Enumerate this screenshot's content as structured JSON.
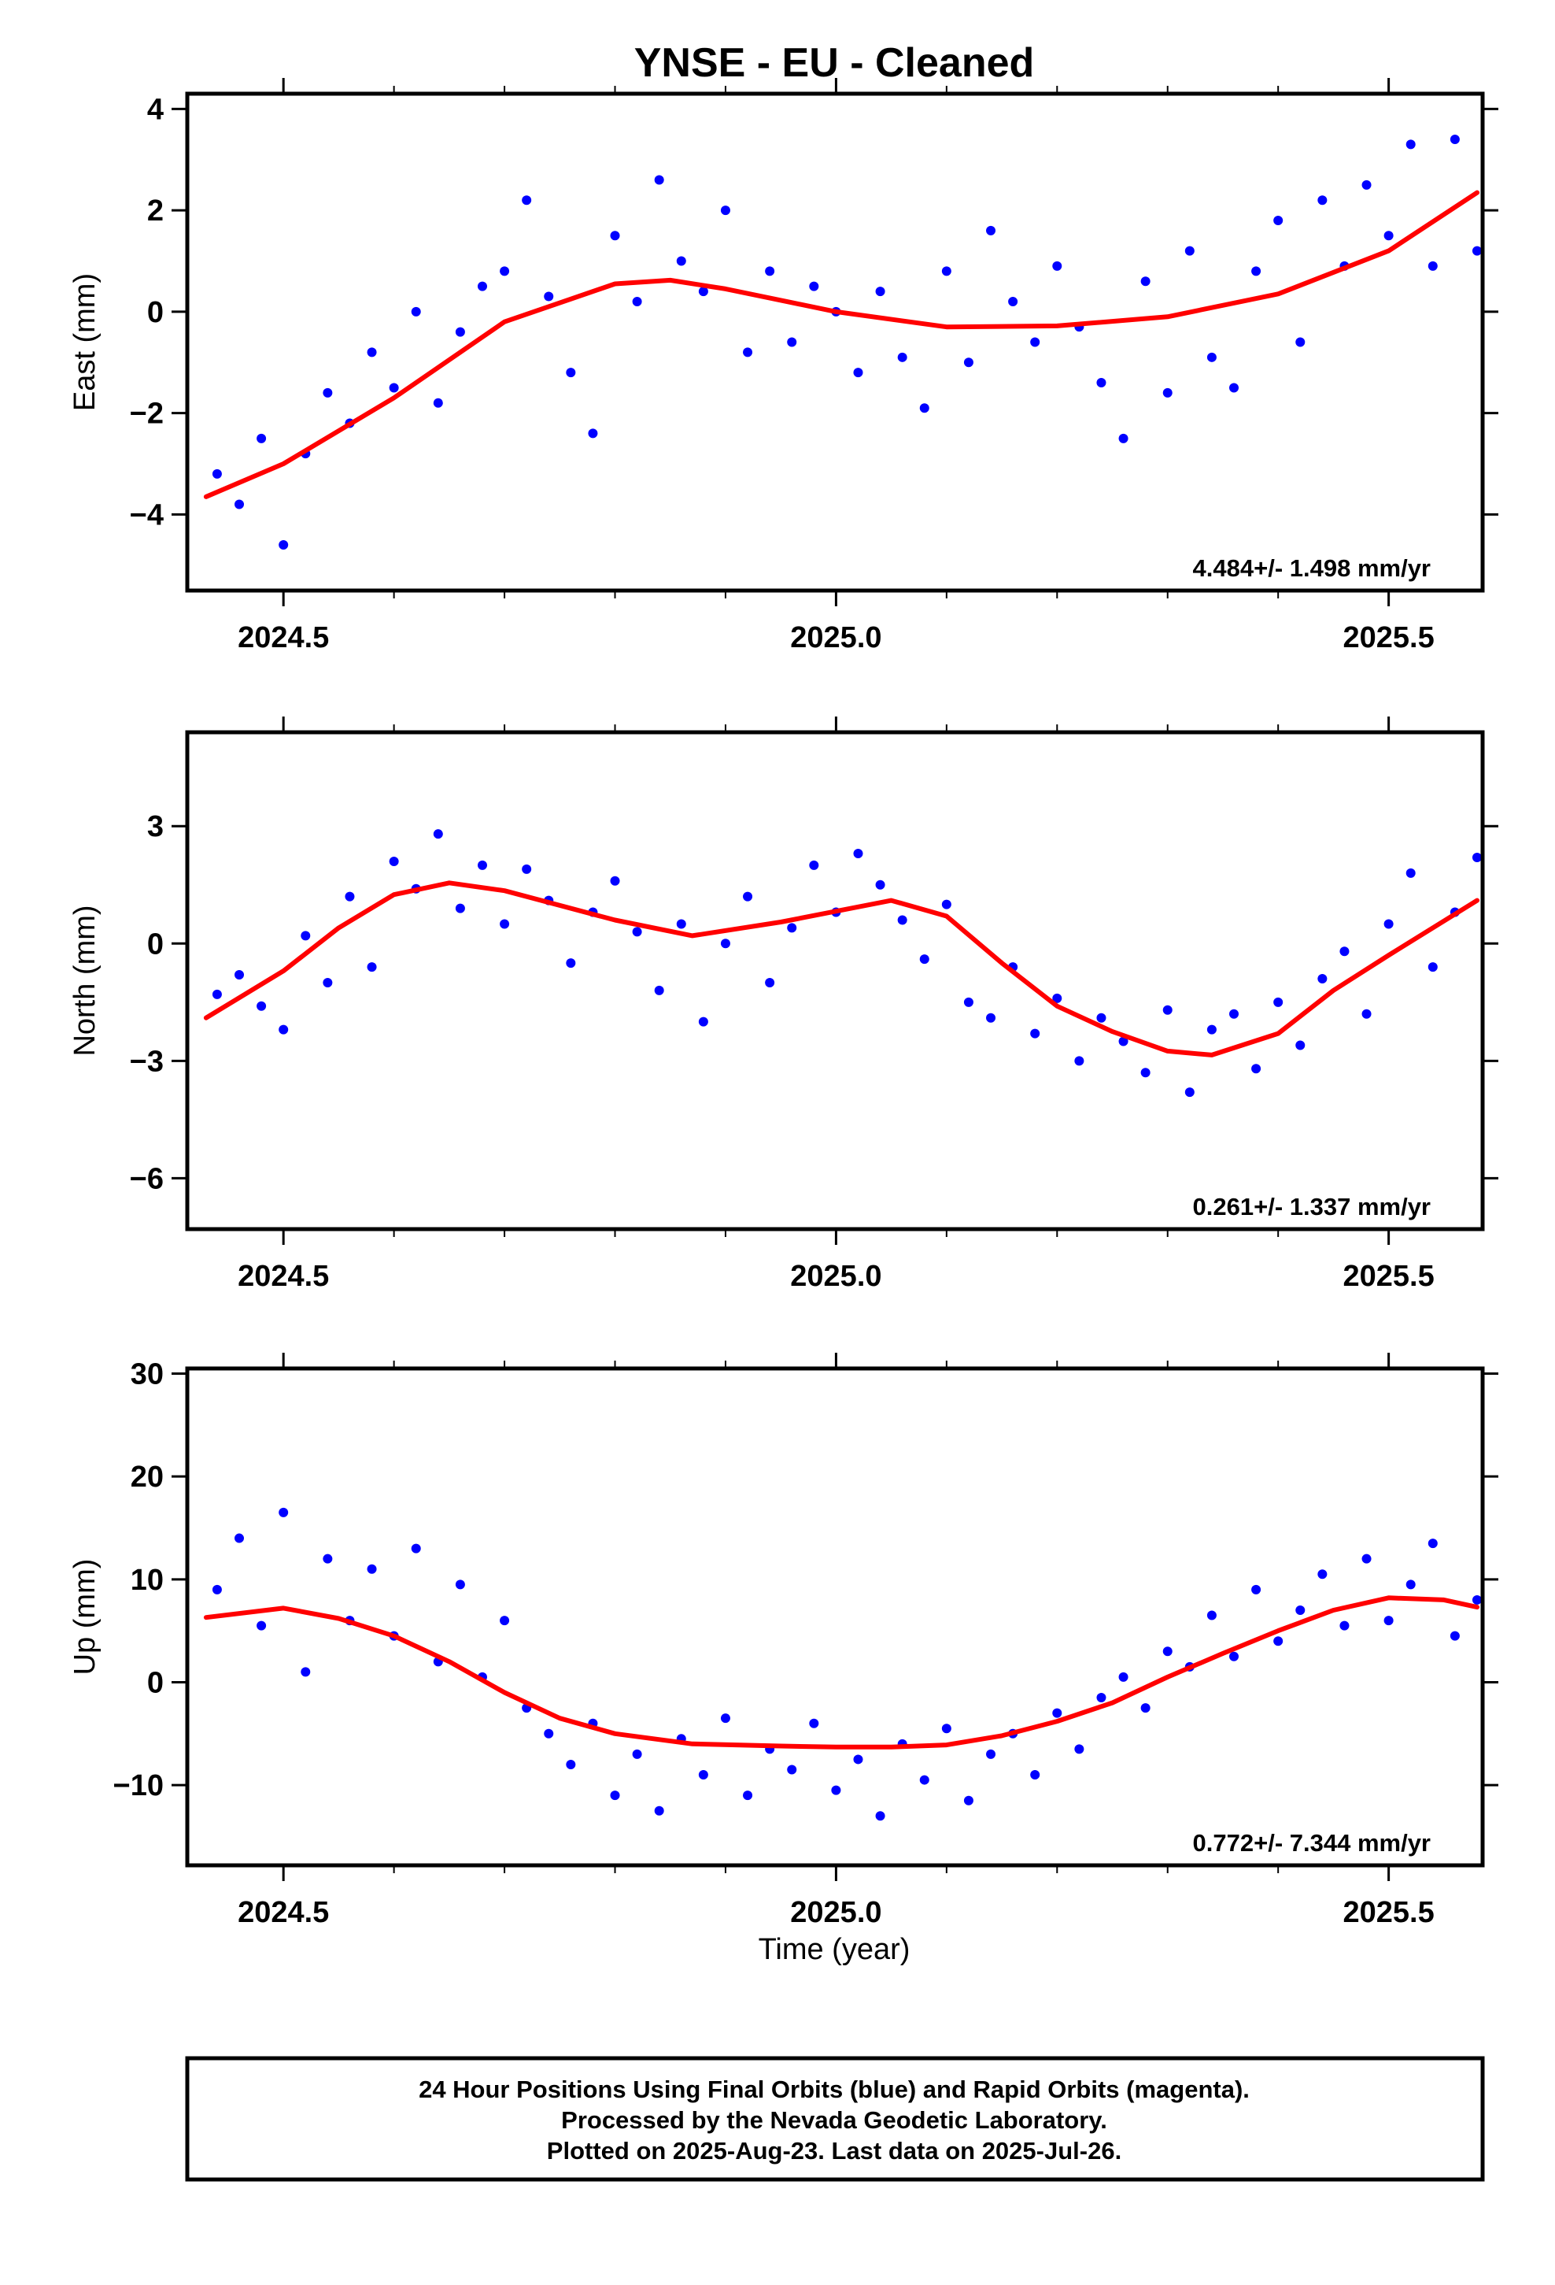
{
  "figure": {
    "title": "YNSE  - EU - Cleaned",
    "xlabel": "Time (year)"
  },
  "footer": {
    "lines": [
      "24 Hour Positions Using Final Orbits (blue) and Rapid Orbits (magenta).",
      "Processed by the Nevada Geodetic Laboratory.",
      "Plotted on 2025-Aug-23. Last data on 2025-Jul-26."
    ]
  },
  "colors": {
    "points": "#0000ff",
    "fit": "#ff0000",
    "frame": "#000000"
  },
  "chart_data": [
    {
      "type": "scatter",
      "name": "east",
      "ylabel": "East (mm)",
      "rate_label": "4.484+/- 1.498 mm/yr",
      "xlim": [
        2024.413,
        2025.585
      ],
      "ylim": [
        -5.5,
        4.3
      ],
      "xticks": [
        "2024.5",
        "2025.0",
        "2025.5"
      ],
      "yticks": [
        "4",
        "2",
        "0",
        "−2",
        "−4"
      ],
      "ytick_values": [
        4,
        2,
        0,
        -2,
        -4
      ],
      "points": {
        "x": [
          2024.44,
          2024.46,
          2024.48,
          2024.5,
          2024.52,
          2024.54,
          2024.56,
          2024.58,
          2024.6,
          2024.62,
          2024.64,
          2024.66,
          2024.68,
          2024.7,
          2024.72,
          2024.74,
          2024.76,
          2024.78,
          2024.8,
          2024.82,
          2024.84,
          2024.86,
          2024.88,
          2024.9,
          2024.92,
          2024.94,
          2024.96,
          2024.98,
          2025.0,
          2025.02,
          2025.04,
          2025.06,
          2025.08,
          2025.1,
          2025.12,
          2025.14,
          2025.16,
          2025.18,
          2025.2,
          2025.22,
          2025.24,
          2025.26,
          2025.28,
          2025.3,
          2025.32,
          2025.34,
          2025.36,
          2025.38,
          2025.4,
          2025.42,
          2025.44,
          2025.46,
          2025.48,
          2025.5,
          2025.52,
          2025.54,
          2025.56,
          2025.58
        ],
        "y": [
          -3.2,
          -3.8,
          -2.5,
          -4.6,
          -2.8,
          -1.6,
          -2.2,
          -0.8,
          -1.5,
          0.0,
          -1.8,
          -0.4,
          0.5,
          0.8,
          2.2,
          0.3,
          -1.2,
          -2.4,
          1.5,
          0.2,
          2.6,
          1.0,
          0.4,
          2.0,
          -0.8,
          0.8,
          -0.6,
          0.5,
          0.0,
          -1.2,
          0.4,
          -0.9,
          -1.9,
          0.8,
          -1.0,
          1.6,
          0.2,
          -0.6,
          0.9,
          -0.3,
          -1.4,
          -2.5,
          0.6,
          -1.6,
          1.2,
          -0.9,
          -1.5,
          0.8,
          1.8,
          -0.6,
          2.2,
          0.9,
          2.5,
          1.5,
          3.3,
          0.9,
          3.4,
          1.2
        ],
        "color": "#0000ff"
      },
      "fit": {
        "x": [
          2024.43,
          2024.5,
          2024.6,
          2024.7,
          2024.8,
          2024.85,
          2024.9,
          2025.0,
          2025.1,
          2025.2,
          2025.3,
          2025.4,
          2025.5,
          2025.58
        ],
        "y": [
          -3.65,
          -3.0,
          -1.7,
          -0.2,
          0.55,
          0.62,
          0.45,
          0.0,
          -0.3,
          -0.28,
          -0.1,
          0.35,
          1.2,
          2.35
        ],
        "color": "#ff0000"
      }
    },
    {
      "type": "scatter",
      "name": "north",
      "ylabel": "North (mm)",
      "rate_label": "0.261+/- 1.337 mm/yr",
      "xlim": [
        2024.413,
        2025.585
      ],
      "ylim": [
        -7.3,
        5.4
      ],
      "xticks": [
        "2024.5",
        "2025.0",
        "2025.5"
      ],
      "yticks": [
        "3",
        "0",
        "−3",
        "−6"
      ],
      "ytick_values": [
        3,
        0,
        -3,
        -6
      ],
      "points": {
        "x": [
          2024.44,
          2024.46,
          2024.48,
          2024.5,
          2024.52,
          2024.54,
          2024.56,
          2024.58,
          2024.6,
          2024.62,
          2024.64,
          2024.66,
          2024.68,
          2024.7,
          2024.72,
          2024.74,
          2024.76,
          2024.78,
          2024.8,
          2024.82,
          2024.84,
          2024.86,
          2024.88,
          2024.9,
          2024.92,
          2024.94,
          2024.96,
          2024.98,
          2025.0,
          2025.02,
          2025.04,
          2025.06,
          2025.08,
          2025.1,
          2025.12,
          2025.14,
          2025.16,
          2025.18,
          2025.2,
          2025.22,
          2025.24,
          2025.26,
          2025.28,
          2025.3,
          2025.32,
          2025.34,
          2025.36,
          2025.38,
          2025.4,
          2025.42,
          2025.44,
          2025.46,
          2025.48,
          2025.5,
          2025.52,
          2025.54,
          2025.56,
          2025.58
        ],
        "y": [
          -1.3,
          -0.8,
          -1.6,
          -2.2,
          0.2,
          -1.0,
          1.2,
          -0.6,
          2.1,
          1.4,
          2.8,
          0.9,
          2.0,
          0.5,
          1.9,
          1.1,
          -0.5,
          0.8,
          1.6,
          0.3,
          -1.2,
          0.5,
          -2.0,
          0.0,
          1.2,
          -1.0,
          0.4,
          2.0,
          0.8,
          2.3,
          1.5,
          0.6,
          -0.4,
          1.0,
          -1.5,
          -1.9,
          -0.6,
          -2.3,
          -1.4,
          -3.0,
          -1.9,
          -2.5,
          -3.3,
          -1.7,
          -3.8,
          -2.2,
          -1.8,
          -3.2,
          -1.5,
          -2.6,
          -0.9,
          -0.2,
          -1.8,
          0.5,
          1.8,
          -0.6,
          0.8,
          2.2
        ],
        "color": "#0000ff"
      },
      "fit": {
        "x": [
          2024.43,
          2024.5,
          2024.55,
          2024.6,
          2024.65,
          2024.7,
          2024.8,
          2024.87,
          2024.95,
          2025.05,
          2025.1,
          2025.15,
          2025.2,
          2025.25,
          2025.3,
          2025.34,
          2025.4,
          2025.45,
          2025.5,
          2025.58
        ],
        "y": [
          -1.9,
          -0.7,
          0.4,
          1.25,
          1.55,
          1.35,
          0.6,
          0.2,
          0.55,
          1.1,
          0.7,
          -0.5,
          -1.6,
          -2.25,
          -2.75,
          -2.85,
          -2.3,
          -1.2,
          -0.3,
          1.1
        ],
        "color": "#ff0000"
      }
    },
    {
      "type": "scatter",
      "name": "up",
      "ylabel": "Up (mm)",
      "rate_label": "0.772+/- 7.344 mm/yr",
      "xlim": [
        2024.413,
        2025.585
      ],
      "ylim": [
        -17.8,
        30.5
      ],
      "xticks": [
        "2024.5",
        "2025.0",
        "2025.5"
      ],
      "yticks": [
        "30",
        "20",
        "10",
        "0",
        "−10"
      ],
      "ytick_values": [
        30,
        20,
        10,
        0,
        -10
      ],
      "points": {
        "x": [
          2024.44,
          2024.46,
          2024.48,
          2024.5,
          2024.52,
          2024.54,
          2024.56,
          2024.58,
          2024.6,
          2024.62,
          2024.64,
          2024.66,
          2024.68,
          2024.7,
          2024.72,
          2024.74,
          2024.76,
          2024.78,
          2024.8,
          2024.82,
          2024.84,
          2024.86,
          2024.88,
          2024.9,
          2024.92,
          2024.94,
          2024.96,
          2024.98,
          2025.0,
          2025.02,
          2025.04,
          2025.06,
          2025.08,
          2025.1,
          2025.12,
          2025.14,
          2025.16,
          2025.18,
          2025.2,
          2025.22,
          2025.24,
          2025.26,
          2025.28,
          2025.3,
          2025.32,
          2025.34,
          2025.36,
          2025.38,
          2025.4,
          2025.42,
          2025.44,
          2025.46,
          2025.48,
          2025.5,
          2025.52,
          2025.54,
          2025.56,
          2025.58
        ],
        "y": [
          9.0,
          14.0,
          5.5,
          16.5,
          1.0,
          12.0,
          6.0,
          11.0,
          4.5,
          13.0,
          2.0,
          9.5,
          0.5,
          6.0,
          -2.5,
          -5.0,
          -8.0,
          -4.0,
          -11.0,
          -7.0,
          -12.5,
          -5.5,
          -9.0,
          -3.5,
          -11.0,
          -6.5,
          -8.5,
          -4.0,
          -10.5,
          -7.5,
          -13.0,
          -6.0,
          -9.5,
          -4.5,
          -11.5,
          -7.0,
          -5.0,
          -9.0,
          -3.0,
          -6.5,
          -1.5,
          0.5,
          -2.5,
          3.0,
          1.5,
          6.5,
          2.5,
          9.0,
          4.0,
          7.0,
          10.5,
          5.5,
          12.0,
          6.0,
          9.5,
          13.5,
          4.5,
          8.0
        ],
        "color": "#0000ff"
      },
      "fit": {
        "x": [
          2024.43,
          2024.5,
          2024.55,
          2024.6,
          2024.65,
          2024.7,
          2024.75,
          2024.8,
          2024.87,
          2024.95,
          2025.0,
          2025.05,
          2025.1,
          2025.15,
          2025.2,
          2025.25,
          2025.3,
          2025.35,
          2025.4,
          2025.45,
          2025.5,
          2025.55,
          2025.58
        ],
        "y": [
          6.3,
          7.2,
          6.2,
          4.5,
          2.0,
          -1.0,
          -3.5,
          -5.0,
          -6.0,
          -6.2,
          -6.3,
          -6.3,
          -6.1,
          -5.2,
          -3.8,
          -2.0,
          0.5,
          2.8,
          5.0,
          7.0,
          8.2,
          8.0,
          7.3
        ],
        "color": "#ff0000"
      }
    }
  ]
}
